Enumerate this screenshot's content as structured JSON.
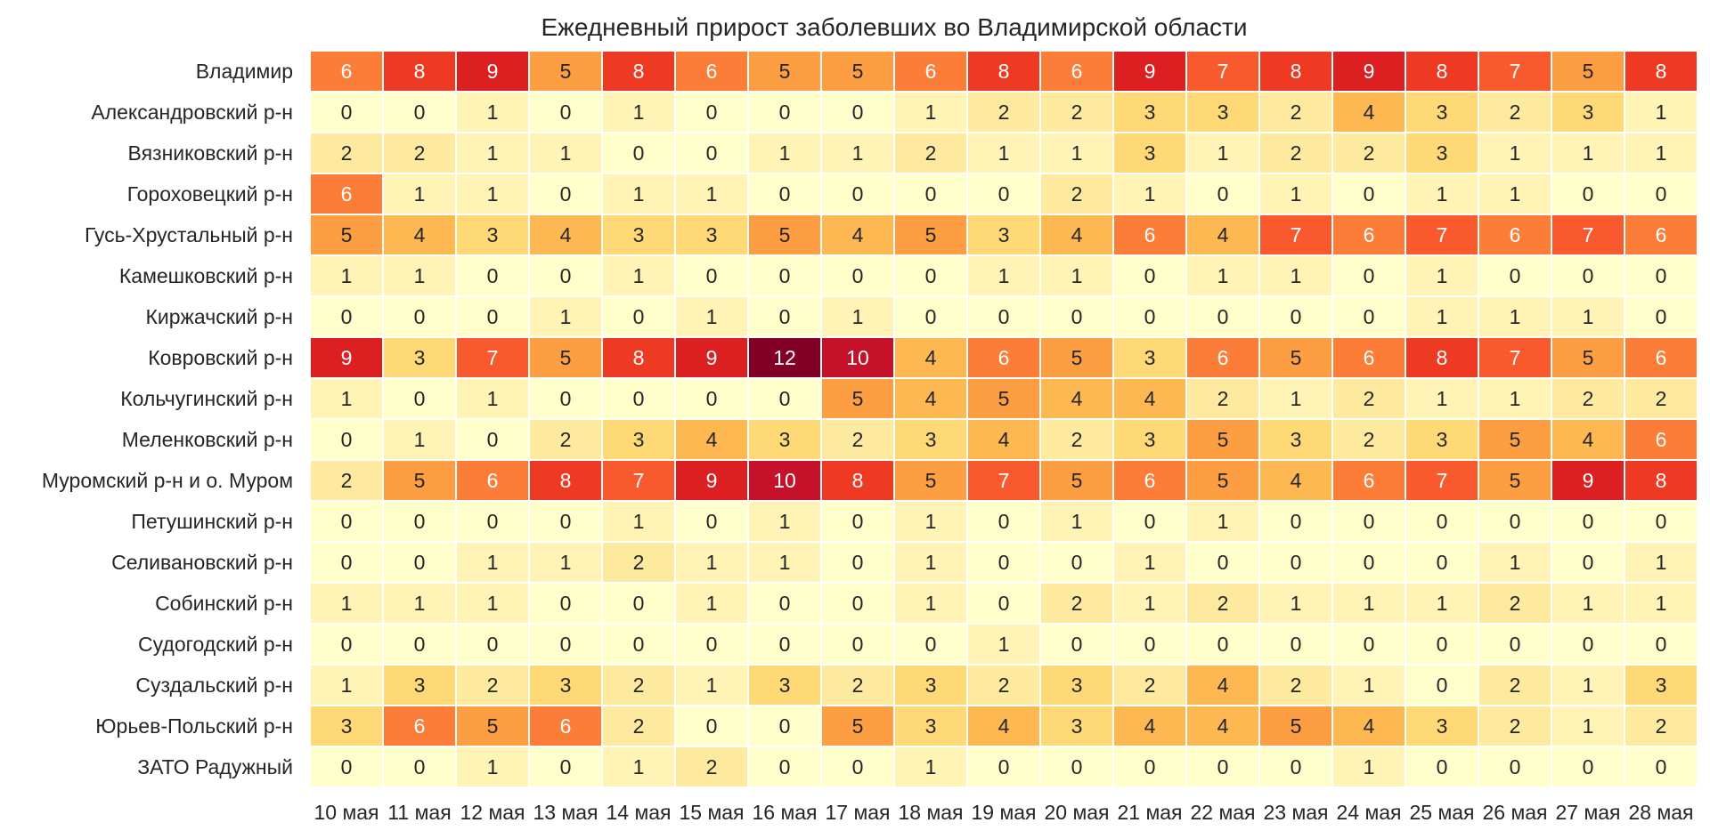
{
  "chart_data": {
    "type": "heatmap",
    "title": "Ежедневный прирост заболевших во Владимирской области",
    "xlabel": "",
    "ylabel": "",
    "grid": false,
    "legend": "none",
    "value_range": [
      0,
      12
    ],
    "columns": [
      "10 мая",
      "11 мая",
      "12 мая",
      "13 мая",
      "14 мая",
      "15 мая",
      "16 мая",
      "17 мая",
      "18 мая",
      "19 мая",
      "20 мая",
      "21 мая",
      "22 мая",
      "23 мая",
      "24 мая",
      "25 мая",
      "26 мая",
      "27 мая",
      "28 мая"
    ],
    "rows": [
      {
        "name": "Владимир",
        "values": [
          6,
          8,
          9,
          5,
          8,
          6,
          5,
          5,
          6,
          8,
          6,
          9,
          7,
          8,
          9,
          8,
          7,
          5,
          8
        ]
      },
      {
        "name": "Александровский р-н",
        "values": [
          0,
          0,
          1,
          0,
          1,
          0,
          0,
          0,
          1,
          2,
          2,
          3,
          3,
          2,
          4,
          3,
          2,
          3,
          1
        ]
      },
      {
        "name": "Вязниковский р-н",
        "values": [
          2,
          2,
          1,
          1,
          0,
          0,
          1,
          1,
          2,
          1,
          1,
          3,
          1,
          2,
          2,
          3,
          1,
          1,
          1
        ]
      },
      {
        "name": "Гороховецкий р-н",
        "values": [
          6,
          1,
          1,
          0,
          1,
          1,
          0,
          0,
          0,
          0,
          2,
          1,
          0,
          1,
          0,
          1,
          1,
          0,
          0
        ]
      },
      {
        "name": "Гусь-Хрустальный р-н",
        "values": [
          5,
          4,
          3,
          4,
          3,
          3,
          5,
          4,
          5,
          3,
          4,
          6,
          4,
          7,
          6,
          7,
          6,
          7,
          6
        ]
      },
      {
        "name": "Камешковский р-н",
        "values": [
          1,
          1,
          0,
          0,
          1,
          0,
          0,
          0,
          0,
          1,
          1,
          0,
          1,
          1,
          0,
          1,
          0,
          0,
          0
        ]
      },
      {
        "name": "Киржачский р-н",
        "values": [
          0,
          0,
          0,
          1,
          0,
          1,
          0,
          1,
          0,
          0,
          0,
          0,
          0,
          0,
          0,
          1,
          1,
          1,
          0
        ]
      },
      {
        "name": "Ковровский р-н",
        "values": [
          9,
          3,
          7,
          5,
          8,
          9,
          12,
          10,
          4,
          6,
          5,
          3,
          6,
          5,
          6,
          8,
          7,
          5,
          6
        ]
      },
      {
        "name": "Кольчугинский р-н",
        "values": [
          1,
          0,
          1,
          0,
          0,
          0,
          0,
          5,
          4,
          5,
          4,
          4,
          2,
          1,
          2,
          1,
          1,
          2,
          2
        ]
      },
      {
        "name": "Меленковский р-н",
        "values": [
          0,
          1,
          0,
          2,
          3,
          4,
          3,
          2,
          3,
          4,
          2,
          3,
          5,
          3,
          2,
          3,
          5,
          4,
          6
        ]
      },
      {
        "name": "Муромский р-н и о. Муром",
        "values": [
          2,
          5,
          6,
          8,
          7,
          9,
          10,
          8,
          5,
          7,
          5,
          6,
          5,
          4,
          6,
          7,
          5,
          9,
          8
        ]
      },
      {
        "name": "Петушинский р-н",
        "values": [
          0,
          0,
          0,
          0,
          1,
          0,
          1,
          0,
          1,
          0,
          1,
          0,
          1,
          0,
          0,
          0,
          0,
          0,
          0
        ]
      },
      {
        "name": "Селивановский р-н",
        "values": [
          0,
          0,
          1,
          1,
          2,
          1,
          1,
          0,
          1,
          0,
          0,
          1,
          0,
          0,
          0,
          0,
          1,
          0,
          1
        ]
      },
      {
        "name": "Собинский р-н",
        "values": [
          1,
          1,
          1,
          0,
          0,
          1,
          0,
          0,
          1,
          0,
          2,
          1,
          2,
          1,
          1,
          1,
          2,
          1,
          1
        ]
      },
      {
        "name": "Судогодский р-н",
        "values": [
          0,
          0,
          0,
          0,
          0,
          0,
          0,
          0,
          0,
          1,
          0,
          0,
          0,
          0,
          0,
          0,
          0,
          0,
          0
        ]
      },
      {
        "name": "Суздальский р-н",
        "values": [
          1,
          3,
          2,
          3,
          2,
          1,
          3,
          2,
          3,
          2,
          3,
          2,
          4,
          2,
          1,
          0,
          2,
          1,
          3
        ]
      },
      {
        "name": "Юрьев-Польский р-н",
        "values": [
          3,
          6,
          5,
          6,
          2,
          0,
          0,
          5,
          3,
          4,
          3,
          4,
          4,
          5,
          4,
          3,
          2,
          1,
          2
        ]
      },
      {
        "name": "ЗАТО Радужный",
        "values": [
          0,
          0,
          1,
          0,
          1,
          2,
          0,
          0,
          1,
          0,
          0,
          0,
          0,
          0,
          1,
          0,
          0,
          0,
          0
        ]
      }
    ],
    "colors": [
      "#FFFFCC",
      "#FFF4B5",
      "#FEEA9F",
      "#FED976",
      "#FEB852",
      "#FD9E43",
      "#FC7D37",
      "#F85A2D",
      "#EE3A23",
      "#DC2022",
      "#C5122A",
      "#A6072B",
      "#820026"
    ],
    "text_color_dark": "#262626",
    "text_color_light": "#FFFFFF"
  }
}
